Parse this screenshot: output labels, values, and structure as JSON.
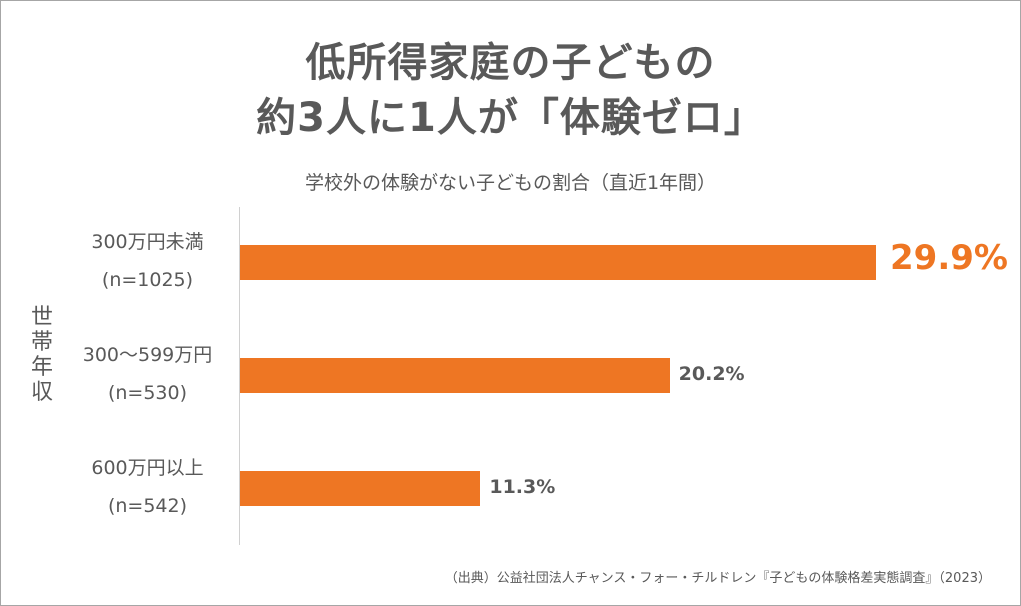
{
  "chart_data": {
    "type": "bar",
    "orientation": "horizontal",
    "title": [
      "低所得家庭の子どもの",
      "約3人に1人が「体験ゼロ」"
    ],
    "subtitle": "学校外の体験がない子どもの割合（直近1年間）",
    "ylabel": "世帯年収",
    "categories": [
      {
        "label": "300万円未満",
        "n": "(n=1025)"
      },
      {
        "label": "300〜599万円",
        "n": "(n=530)"
      },
      {
        "label": "600万円以上",
        "n": "(n=542)"
      }
    ],
    "values": [
      29.9,
      20.2,
      11.3
    ],
    "value_labels": [
      "29.9%",
      "20.2%",
      "11.3%"
    ],
    "unit": "%",
    "xlim": [
      0,
      29.9
    ],
    "grid": false,
    "colors": {
      "bar": "#EE7623",
      "highlight_label": "#EE7623",
      "label": "#595959"
    },
    "source": "（出典）公益社団法人チャンス・フォー・チルドレン『子どもの体験格差実態調査』（2023）"
  }
}
